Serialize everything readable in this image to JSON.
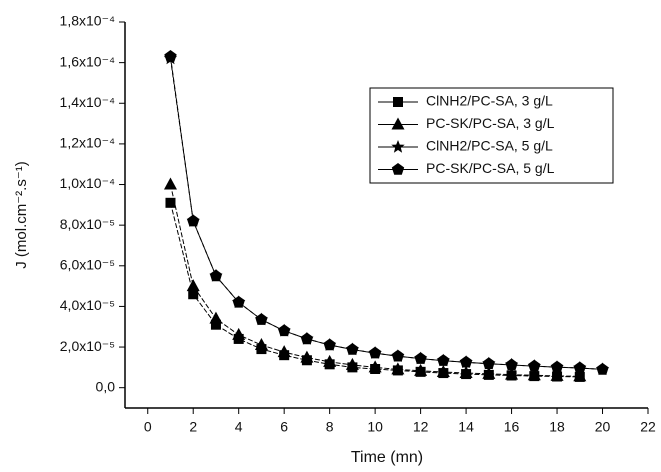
{
  "chart_data": {
    "type": "line",
    "x_label": "Time (mn)",
    "y_label": "J (mol.cm⁻².s⁻¹)",
    "x": [
      1,
      2,
      3,
      4,
      5,
      6,
      7,
      8,
      9,
      10,
      11,
      12,
      13,
      14,
      15,
      16,
      17,
      18,
      19,
      20
    ],
    "xlim": [
      -1,
      22
    ],
    "xticks": [
      0,
      2,
      4,
      6,
      8,
      10,
      12,
      14,
      16,
      18,
      20,
      22
    ],
    "ylim": [
      -1e-05,
      0.00018
    ],
    "yticks": [
      {
        "value": 0,
        "label": "0,0"
      },
      {
        "value": 2e-05,
        "label": "2,0x10⁻⁵"
      },
      {
        "value": 4e-05,
        "label": "4,0x10⁻⁵"
      },
      {
        "value": 6e-05,
        "label": "6,0x10⁻⁵"
      },
      {
        "value": 8e-05,
        "label": "8,0x10⁻⁵"
      },
      {
        "value": 0.0001,
        "label": "1,0x10⁻⁴"
      },
      {
        "value": 0.00012,
        "label": "1,2x10⁻⁴"
      },
      {
        "value": 0.00014,
        "label": "1,4x10⁻⁴"
      },
      {
        "value": 0.00016,
        "label": "1,6x10⁻⁴"
      },
      {
        "value": 0.00018,
        "label": "1,8x10⁻⁴"
      }
    ],
    "series": [
      {
        "name": "ClNH2/PC-SA, 3 g/L",
        "color": "#000000",
        "marker": "square",
        "values": [
          9.1e-05,
          4.6e-05,
          3.1e-05,
          2.4e-05,
          1.9e-05,
          1.6e-05,
          1.35e-05,
          1.15e-05,
          1e-05,
          9.2e-06,
          8.5e-06,
          7.8e-06,
          7.2e-06,
          6.7e-06,
          6.3e-06,
          6e-06,
          5.7e-06,
          5.5e-06,
          5.3e-06,
          null
        ]
      },
      {
        "name": "PC-SK/PC-SA, 3 g/L",
        "color": "#000000",
        "marker": "triangle",
        "values": [
          0.0001,
          5e-05,
          3.4e-05,
          2.6e-05,
          2.1e-05,
          1.75e-05,
          1.48e-05,
          1.27e-05,
          1.12e-05,
          1e-05,
          9e-06,
          8.3e-06,
          7.7e-06,
          7.2e-06,
          6.8e-06,
          6.4e-06,
          6.1e-06,
          5.8e-06,
          5.6e-06,
          null
        ]
      },
      {
        "name": "ClNH2/PC-SA, 5 g/L",
        "color": "#000000",
        "marker": "star",
        "values": [
          0.000162,
          8.2e-05,
          5.5e-05,
          4.2e-05,
          3.35e-05,
          2.8e-05,
          2.4e-05,
          2.1e-05,
          1.88e-05,
          1.7e-05,
          1.55e-05,
          1.43e-05,
          1.33e-05,
          1.25e-05,
          1.18e-05,
          1.12e-05,
          1.06e-05,
          1.01e-05,
          9.7e-06,
          9e-06
        ]
      },
      {
        "name": "PC-SK/PC-SA, 5 g/L",
        "color": "#000000",
        "marker": "pentagon",
        "values": [
          0.000163,
          8.2e-05,
          5.5e-05,
          4.2e-05,
          3.35e-05,
          2.8e-05,
          2.4e-05,
          2.1e-05,
          1.88e-05,
          1.7e-05,
          1.55e-05,
          1.43e-05,
          1.33e-05,
          1.25e-05,
          1.18e-05,
          1.12e-05,
          1.06e-05,
          1.01e-05,
          9.7e-06,
          9e-06
        ]
      }
    ],
    "legend": "upper right"
  }
}
